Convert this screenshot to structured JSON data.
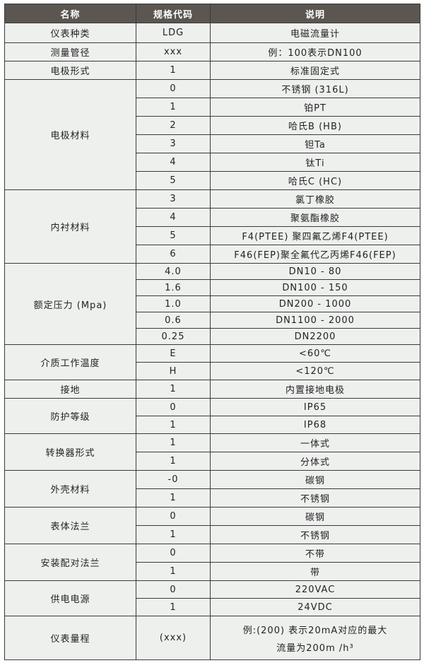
{
  "header": {
    "name": "名称",
    "code": "规格代码",
    "desc": "说明"
  },
  "groups": [
    {
      "name": "仪表种类",
      "h": 28,
      "items": [
        {
          "code": "LDG",
          "desc": "电磁流量计"
        }
      ]
    },
    {
      "name": "测量管径",
      "h": 26,
      "items": [
        {
          "code": "xxx",
          "desc": "例：100表示DN100"
        }
      ]
    },
    {
      "name": "电极形式",
      "h": 26,
      "items": [
        {
          "code": "1",
          "desc": "标准固定式"
        }
      ]
    },
    {
      "name": "电极材料",
      "h": 26,
      "items": [
        {
          "code": "0",
          "desc": "不锈钢 (316L)"
        },
        {
          "code": "1",
          "desc": "铂PT"
        },
        {
          "code": "2",
          "desc": "哈氏B (HB)"
        },
        {
          "code": "3",
          "desc": "钽Ta"
        },
        {
          "code": "4",
          "desc": "钛Ti"
        },
        {
          "code": "5",
          "desc": "哈氏C (HC)"
        }
      ]
    },
    {
      "name": "内衬材料",
      "h": 26,
      "items": [
        {
          "code": "3",
          "desc": "氯丁橡胶"
        },
        {
          "code": "4",
          "desc": "聚氨酯橡胶"
        },
        {
          "code": "5",
          "desc": "F4(PTEE) 聚四氟乙烯F4(PTEE)"
        },
        {
          "code": "6",
          "desc": "F46(FEP)聚全氟代乙丙烯F46(FEP)"
        }
      ]
    },
    {
      "name": "额定压力 (Mpa)",
      "h": 23,
      "items": [
        {
          "code": "4.0",
          "desc": "DN10 - 80"
        },
        {
          "code": "1.6",
          "desc": "DN100 - 150"
        },
        {
          "code": "1.0",
          "desc": "DN200 - 1000"
        },
        {
          "code": "0.6",
          "desc": "DN1100 - 2000"
        },
        {
          "code": "0.25",
          "desc": "DN2200"
        }
      ]
    },
    {
      "name": "介质工作温度",
      "h": 25,
      "items": [
        {
          "code": "E",
          "desc": "<60℃"
        },
        {
          "code": "H",
          "desc": "<120℃"
        }
      ]
    },
    {
      "name": "接地",
      "h": 26,
      "items": [
        {
          "code": "1",
          "desc": "内置接地电极"
        }
      ]
    },
    {
      "name": "防护等级",
      "h": 25,
      "items": [
        {
          "code": "0",
          "desc": "IP65"
        },
        {
          "code": "1",
          "desc": "IP68"
        }
      ]
    },
    {
      "name": "转换器形式",
      "h": 26,
      "items": [
        {
          "code": "1",
          "desc": "一体式"
        },
        {
          "code": "1",
          "desc": "分体式"
        }
      ]
    },
    {
      "name": "外壳材料",
      "h": 26,
      "items": [
        {
          "code": "-0",
          "desc": "碳钢"
        },
        {
          "code": "1",
          "desc": "不锈钢"
        }
      ]
    },
    {
      "name": "表体法兰",
      "h": 26,
      "items": [
        {
          "code": "0",
          "desc": "碳钢"
        },
        {
          "code": "1",
          "desc": "不锈钢"
        }
      ]
    },
    {
      "name": "安装配对法兰",
      "h": 26,
      "items": [
        {
          "code": "0",
          "desc": "不带"
        },
        {
          "code": "1",
          "desc": "带"
        }
      ]
    },
    {
      "name": "供电电源",
      "h": 25,
      "items": [
        {
          "code": "0",
          "desc": "220VAC"
        },
        {
          "code": "1",
          "desc": "24VDC"
        }
      ]
    },
    {
      "name": "仪表量程",
      "h": 62,
      "items": [
        {
          "code": "(xxx)",
          "desc": "例:(200) 表示20mA对应的最大",
          "desc2": "流量为200m /h³"
        }
      ]
    }
  ]
}
